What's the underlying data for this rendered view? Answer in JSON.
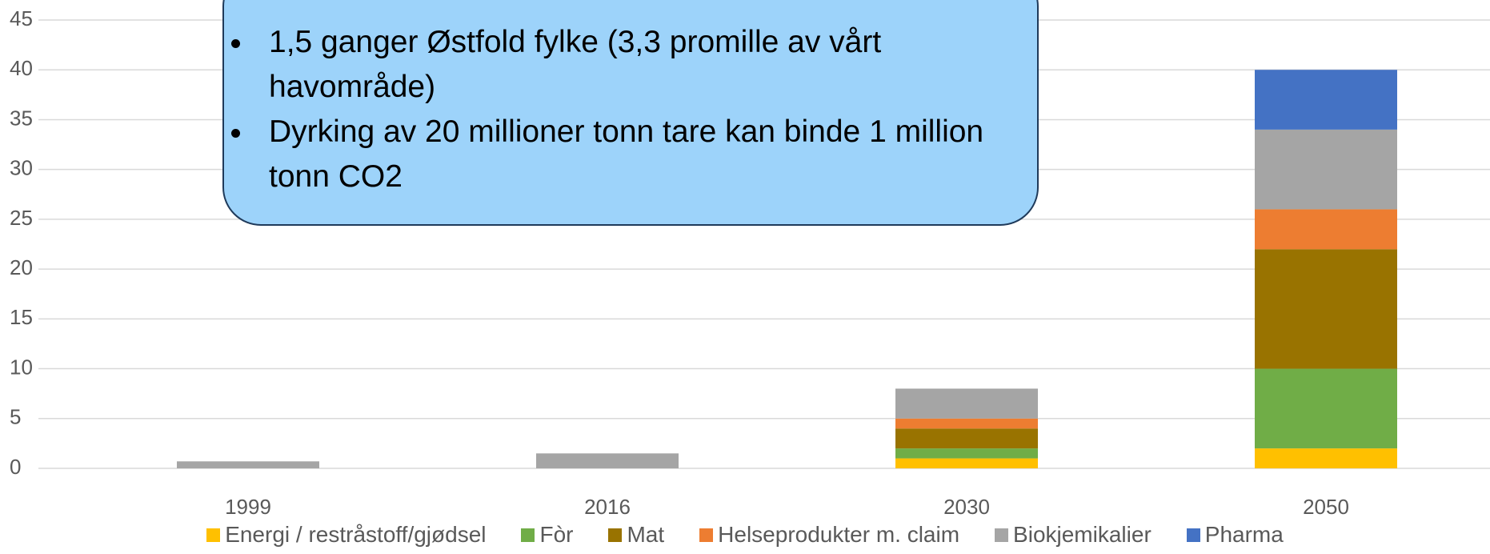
{
  "chart_data": {
    "type": "bar",
    "stacked": true,
    "categories": [
      "1999",
      "2016",
      "2030",
      "2050"
    ],
    "series": [
      {
        "name": "Energi / restråstoff/gjødsel",
        "color": "#ffc000",
        "values": [
          0,
          0,
          1,
          2
        ]
      },
      {
        "name": "Fòr",
        "color": "#70ad47",
        "values": [
          0,
          0,
          1,
          8
        ]
      },
      {
        "name": "Mat",
        "color": "#997300",
        "values": [
          0,
          0,
          2,
          12
        ]
      },
      {
        "name": "Helseprodukter m. claim",
        "color": "#ed7d31",
        "values": [
          0,
          0,
          1,
          4
        ]
      },
      {
        "name": "Biokjemikalier",
        "color": "#a5a5a5",
        "values": [
          0.7,
          1.5,
          3,
          8
        ]
      },
      {
        "name": "Pharma",
        "color": "#4472c4",
        "values": [
          0,
          0,
          0,
          6
        ]
      }
    ],
    "ylim": [
      0,
      45
    ],
    "yticks": [
      0,
      5,
      10,
      15,
      20,
      25,
      30,
      35,
      40,
      45
    ],
    "grid": true,
    "legend": "bottom"
  },
  "callout": {
    "bullets": [
      "1,5 ganger Østfold fylke (3,3 promille av vårt havområde)",
      "Dyrking av 20 millioner tonn tare kan binde 1 million tonn CO2"
    ]
  }
}
